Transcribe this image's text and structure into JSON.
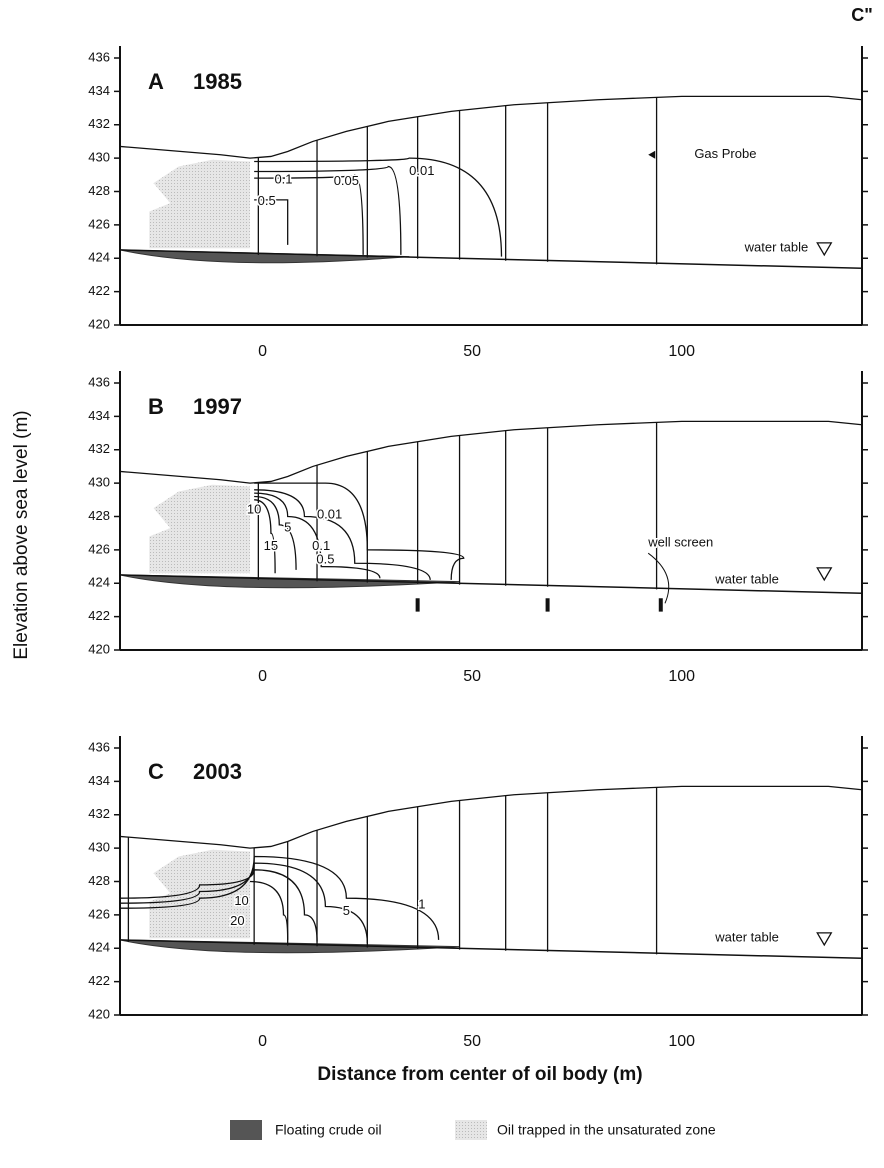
{
  "corner_label": "C\"",
  "y_label": "Elevation above sea level (m)",
  "x_label": "Distance from center of oil body (m)",
  "legend": [
    "Floating crude oil",
    "Oil trapped in the unsaturated zone"
  ],
  "chart_data": [
    {
      "type": "section",
      "panel": "A",
      "year": "1985",
      "xlim": [
        -34,
        143
      ],
      "ylim": [
        420,
        436
      ],
      "xticks": [
        0,
        50,
        100
      ],
      "yticks": [
        420,
        422,
        424,
        426,
        428,
        430,
        432,
        434,
        436
      ],
      "annotations": [
        "Gas Probe",
        "water table",
        "0.1",
        "0.05",
        "0.01",
        "0.5"
      ]
    },
    {
      "type": "section",
      "panel": "B",
      "year": "1997",
      "xlim": [
        -34,
        143
      ],
      "ylim": [
        420,
        436
      ],
      "xticks": [
        0,
        50,
        100
      ],
      "yticks": [
        420,
        422,
        424,
        426,
        428,
        430,
        432,
        434,
        436
      ],
      "annotations": [
        "well screen",
        "water table",
        "0.01",
        "10",
        "5",
        "0.1",
        "0.5",
        "15"
      ]
    },
    {
      "type": "section",
      "panel": "C",
      "year": "2003",
      "xlim": [
        -34,
        143
      ],
      "ylim": [
        420,
        436
      ],
      "xticks": [
        0,
        50,
        100
      ],
      "yticks": [
        420,
        422,
        424,
        426,
        428,
        430,
        432,
        434,
        436
      ],
      "annotations": [
        "water table",
        "10",
        "20",
        "5",
        "1"
      ]
    }
  ]
}
